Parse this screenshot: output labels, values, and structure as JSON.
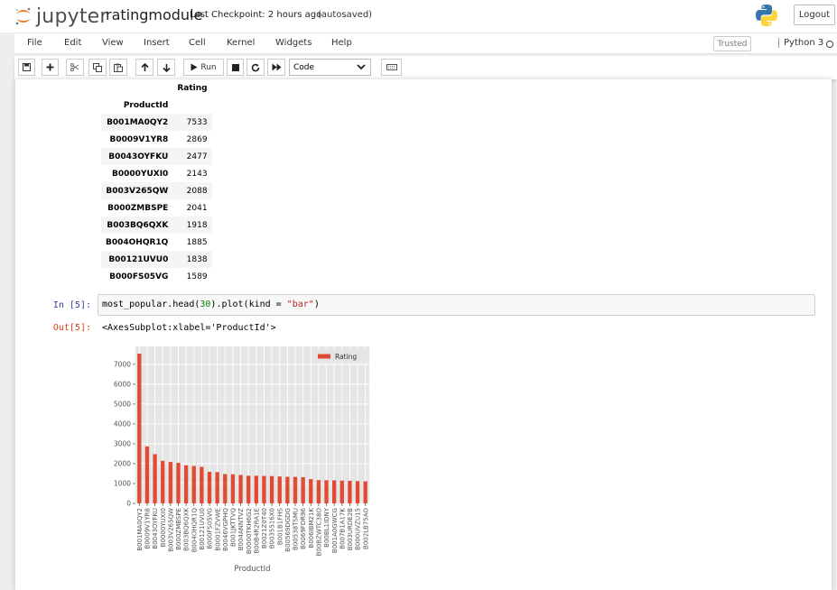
{
  "header": {
    "logo_text": "jupyter",
    "notebook_name": "ratingmodule",
    "checkpoint": "Last Checkpoint: 2 hours ago",
    "autosave": "(autosaved)",
    "logout_label": "Logout"
  },
  "menu": {
    "items": [
      "File",
      "Edit",
      "View",
      "Insert",
      "Cell",
      "Kernel",
      "Widgets",
      "Help"
    ],
    "trusted": "Trusted",
    "kernel": "Python 3"
  },
  "toolbar": {
    "run_label": "Run",
    "cell_type": "Code"
  },
  "table": {
    "column_header": "Rating",
    "index_name": "ProductId",
    "rows": [
      {
        "id": "B001MA0QY2",
        "rating": "7533"
      },
      {
        "id": "B0009V1YR8",
        "rating": "2869"
      },
      {
        "id": "B0043OYFKU",
        "rating": "2477"
      },
      {
        "id": "B0000YUXI0",
        "rating": "2143"
      },
      {
        "id": "B003V265QW",
        "rating": "2088"
      },
      {
        "id": "B000ZMBSPE",
        "rating": "2041"
      },
      {
        "id": "B003BQ6QXK",
        "rating": "1918"
      },
      {
        "id": "B004OHQR1Q",
        "rating": "1885"
      },
      {
        "id": "B00121UVU0",
        "rating": "1838"
      },
      {
        "id": "B000FS05VG",
        "rating": "1589"
      }
    ]
  },
  "cell": {
    "in_prompt": "In [5]:",
    "out_prompt": "Out[5]:",
    "code_pre": "most_popular.head(",
    "code_num": "30",
    "code_mid": ").plot(kind = ",
    "code_str": "\"bar\"",
    "code_post": ")",
    "output_text": "<AxesSubplot:xlabel='ProductId'>"
  },
  "chart_data": {
    "type": "bar",
    "title": "",
    "xlabel": "ProductId",
    "ylabel": "",
    "ylim": [
      0,
      7900
    ],
    "yticks": [
      0,
      1000,
      2000,
      3000,
      4000,
      5000,
      6000,
      7000
    ],
    "grid": true,
    "legend": "top-right",
    "color": "#e24a33",
    "categories": [
      "B001MA0QY2",
      "B0009V1YR8",
      "B0043OYFKU",
      "B0000YUXI0",
      "B003V265QW",
      "B000ZMBSPE",
      "B003BQ6QXK",
      "B004OHQR1Q",
      "B00121UVU0",
      "B000FS05VG",
      "B0001FZVWE",
      "B0046VGPHQ",
      "B001JKTTVQ",
      "B004ANNTVZ",
      "B0000TKH6G2",
      "B00B4R2RA1E",
      "B0021Z0T40",
      "B0035516X0",
      "B001B1FHS",
      "B00569DGDG",
      "B00538TSMU",
      "B0069FDR96",
      "B006IBM21K",
      "B00BZWTC38O",
      "B00BL1IDNY",
      "B001A0GWCG",
      "B007B1A17K",
      "B003URDE2B",
      "B000UVZU15",
      "B002LB75AO"
    ],
    "series": [
      {
        "name": "Rating",
        "values": [
          7533,
          2869,
          2477,
          2143,
          2088,
          2041,
          1918,
          1885,
          1838,
          1589,
          1574,
          1475,
          1464,
          1434,
          1391,
          1389,
          1382,
          1373,
          1354,
          1340,
          1335,
          1320,
          1220,
          1172,
          1162,
          1160,
          1145,
          1135,
          1120,
          1110
        ]
      }
    ]
  }
}
